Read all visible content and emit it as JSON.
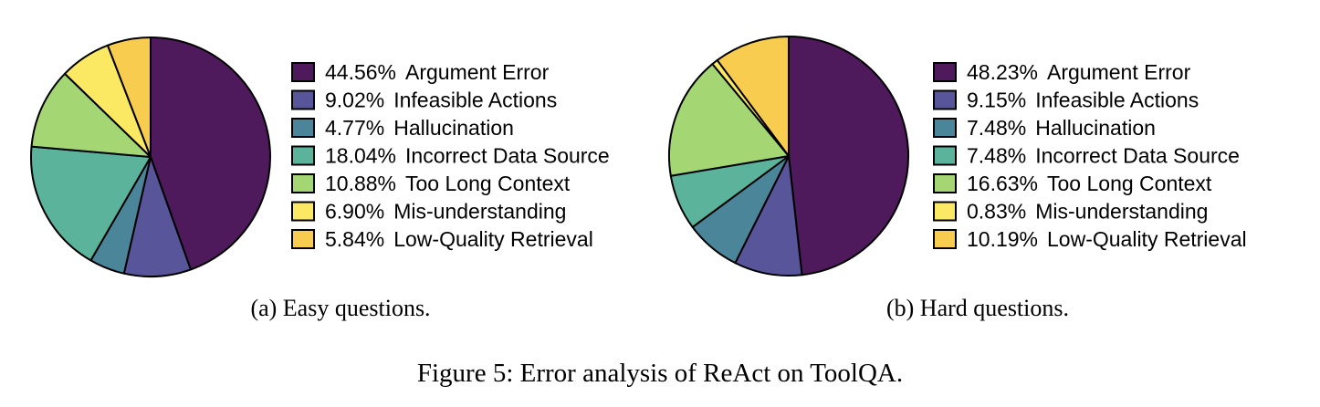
{
  "figure_caption": "Figure 5: Error analysis of ReAct on ToolQA.",
  "chart_data": [
    {
      "type": "pie",
      "caption": "(a) Easy questions.",
      "slices": [
        {
          "label": "Argument Error",
          "percent_label": "44.56%",
          "value": 44.56,
          "color": "#4f1a5c"
        },
        {
          "label": "Infeasible Actions",
          "percent_label": "9.02%",
          "value": 9.02,
          "color": "#58559a"
        },
        {
          "label": "Hallucination",
          "percent_label": "4.77%",
          "value": 4.77,
          "color": "#4a859a"
        },
        {
          "label": "Incorrect Data Source",
          "percent_label": "18.04%",
          "value": 18.04,
          "color": "#5bb39b"
        },
        {
          "label": "Too Long Context",
          "percent_label": "10.88%",
          "value": 10.88,
          "color": "#a4d673"
        },
        {
          "label": "Mis-understanding",
          "percent_label": "6.90%",
          "value": 6.9,
          "color": "#fbe964"
        },
        {
          "label": "Low-Quality Retrieval",
          "percent_label": "5.84%",
          "value": 5.84,
          "color": "#f7cc4f"
        }
      ]
    },
    {
      "type": "pie",
      "caption": "(b) Hard questions.",
      "slices": [
        {
          "label": "Argument Error",
          "percent_label": "48.23%",
          "value": 48.23,
          "color": "#4f1a5c"
        },
        {
          "label": "Infeasible Actions",
          "percent_label": "9.15%",
          "value": 9.15,
          "color": "#58559a"
        },
        {
          "label": "Hallucination",
          "percent_label": "7.48%",
          "value": 7.48,
          "color": "#4a859a"
        },
        {
          "label": "Incorrect Data Source",
          "percent_label": "7.48%",
          "value": 7.48,
          "color": "#5bb39b"
        },
        {
          "label": "Too Long Context",
          "percent_label": "16.63%",
          "value": 16.63,
          "color": "#a4d673"
        },
        {
          "label": "Mis-understanding",
          "percent_label": "0.83%",
          "value": 0.83,
          "color": "#fbe964"
        },
        {
          "label": "Low-Quality Retrieval",
          "percent_label": "10.19%",
          "value": 10.19,
          "color": "#f7cc4f"
        }
      ]
    }
  ]
}
